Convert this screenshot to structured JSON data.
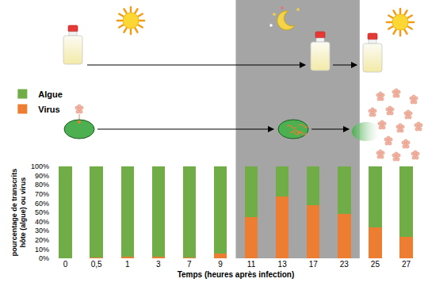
{
  "chart_data": {
    "type": "bar",
    "stacked": true,
    "categories": [
      "0",
      "0,5",
      "1",
      "3",
      "7",
      "9",
      "11",
      "13",
      "17",
      "23",
      "25",
      "27"
    ],
    "series": [
      {
        "name": "Virus",
        "color": "#ed7d31",
        "values": [
          0,
          1,
          2,
          2,
          1,
          5,
          45,
          67,
          58,
          48,
          34,
          23
        ]
      },
      {
        "name": "Algue",
        "color": "#70ad47",
        "values": [
          100,
          99,
          98,
          98,
          99,
          95,
          55,
          33,
          42,
          52,
          66,
          77
        ]
      }
    ],
    "xlabel": "Temps (heures après infection)",
    "ylabel": [
      "pourcentage de transcrits",
      "hôte (algue) ou virus"
    ],
    "ylim": [
      0,
      100
    ],
    "yticks": [
      {
        "value": 0,
        "label": "0%"
      },
      {
        "value": 10,
        "label": "10%"
      },
      {
        "value": 20,
        "label": "20%"
      },
      {
        "value": 30,
        "label": "30%"
      },
      {
        "value": 40,
        "label": "40%"
      },
      {
        "value": 50,
        "label": "50%"
      },
      {
        "value": 60,
        "label": "60%"
      },
      {
        "value": 70,
        "label": "70%"
      },
      {
        "value": 80,
        "label": "80%"
      },
      {
        "value": 90,
        "label": "90%"
      },
      {
        "value": 100,
        "label": "100%"
      }
    ],
    "grid": false,
    "legend": "left"
  }
}
